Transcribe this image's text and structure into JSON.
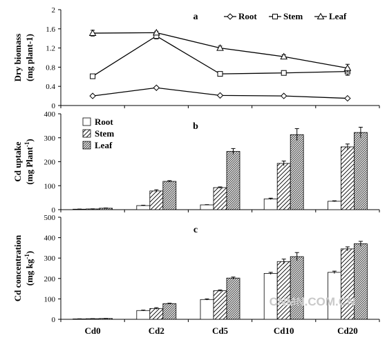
{
  "chart_data": [
    {
      "type": "line",
      "panel_label": "a",
      "ylabel": [
        "Dry biomass",
        "(mg plant-1)"
      ],
      "categories": [
        "Cd0",
        "Cd2",
        "Cd5",
        "Cd10",
        "Cd20"
      ],
      "ylim": [
        0,
        2
      ],
      "yticks": [
        "0",
        "0.4",
        "0.8",
        "1.2",
        "1.6",
        "2"
      ],
      "legend_placement": "top-right",
      "series": [
        {
          "name": "Root",
          "marker": "diamond",
          "values": [
            0.2,
            0.37,
            0.21,
            0.2,
            0.15
          ],
          "errors": [
            0.01,
            0.02,
            0.01,
            0.01,
            0.01
          ]
        },
        {
          "name": "Stem",
          "marker": "square",
          "values": [
            0.61,
            1.45,
            0.66,
            0.68,
            0.71
          ],
          "errors": [
            0.03,
            0.06,
            0.02,
            0.02,
            0.08
          ]
        },
        {
          "name": "Leaf",
          "marker": "triangle",
          "values": [
            1.51,
            1.52,
            1.2,
            1.02,
            0.78
          ],
          "errors": [
            0.06,
            0.03,
            0.04,
            0.04,
            0.08
          ]
        }
      ]
    },
    {
      "type": "bar",
      "panel_label": "b",
      "ylabel": [
        "Cd uptake",
        "(mg Plant",
        "-1",
        ")"
      ],
      "categories": [
        "Cd0",
        "Cd2",
        "Cd5",
        "Cd10",
        "Cd20"
      ],
      "ylim": [
        0,
        400
      ],
      "yticks": [
        "0",
        "100",
        "200",
        "300",
        "400"
      ],
      "legend_placement": "top-left",
      "series": [
        {
          "name": "Root",
          "pattern": "white",
          "values": [
            2,
            17,
            20,
            45,
            35
          ],
          "errors": [
            0.5,
            1.5,
            1,
            3,
            2
          ]
        },
        {
          "name": "Stem",
          "pattern": "sparse-hatch",
          "values": [
            3,
            78,
            92,
            193,
            262
          ],
          "errors": [
            0.5,
            5,
            3,
            10,
            12
          ]
        },
        {
          "name": "Leaf",
          "pattern": "dense-hatch",
          "values": [
            6,
            118,
            243,
            313,
            322
          ],
          "errors": [
            1,
            3,
            12,
            25,
            22
          ]
        }
      ]
    },
    {
      "type": "bar",
      "panel_label": "c",
      "ylabel": [
        "Cd concentration",
        "(mg kg",
        "-1",
        ")"
      ],
      "categories": [
        "Cd0",
        "Cd2",
        "Cd5",
        "Cd10",
        "Cd20"
      ],
      "ylim": [
        0,
        500
      ],
      "yticks": [
        "0",
        "100",
        "200",
        "300",
        "400",
        "500"
      ],
      "series": [
        {
          "name": "Root",
          "pattern": "white",
          "values": [
            2,
            43,
            97,
            225,
            230
          ],
          "errors": [
            0.5,
            2,
            3,
            5,
            6
          ]
        },
        {
          "name": "Stem",
          "pattern": "sparse-hatch",
          "values": [
            3,
            53,
            140,
            283,
            345
          ],
          "errors": [
            0.5,
            4,
            4,
            12,
            10
          ]
        },
        {
          "name": "Leaf",
          "pattern": "dense-hatch",
          "values": [
            4,
            77,
            202,
            307,
            370
          ],
          "errors": [
            0.5,
            2,
            5,
            20,
            12
          ]
        }
      ]
    }
  ],
  "watermark": "CNMN.COM.CN"
}
